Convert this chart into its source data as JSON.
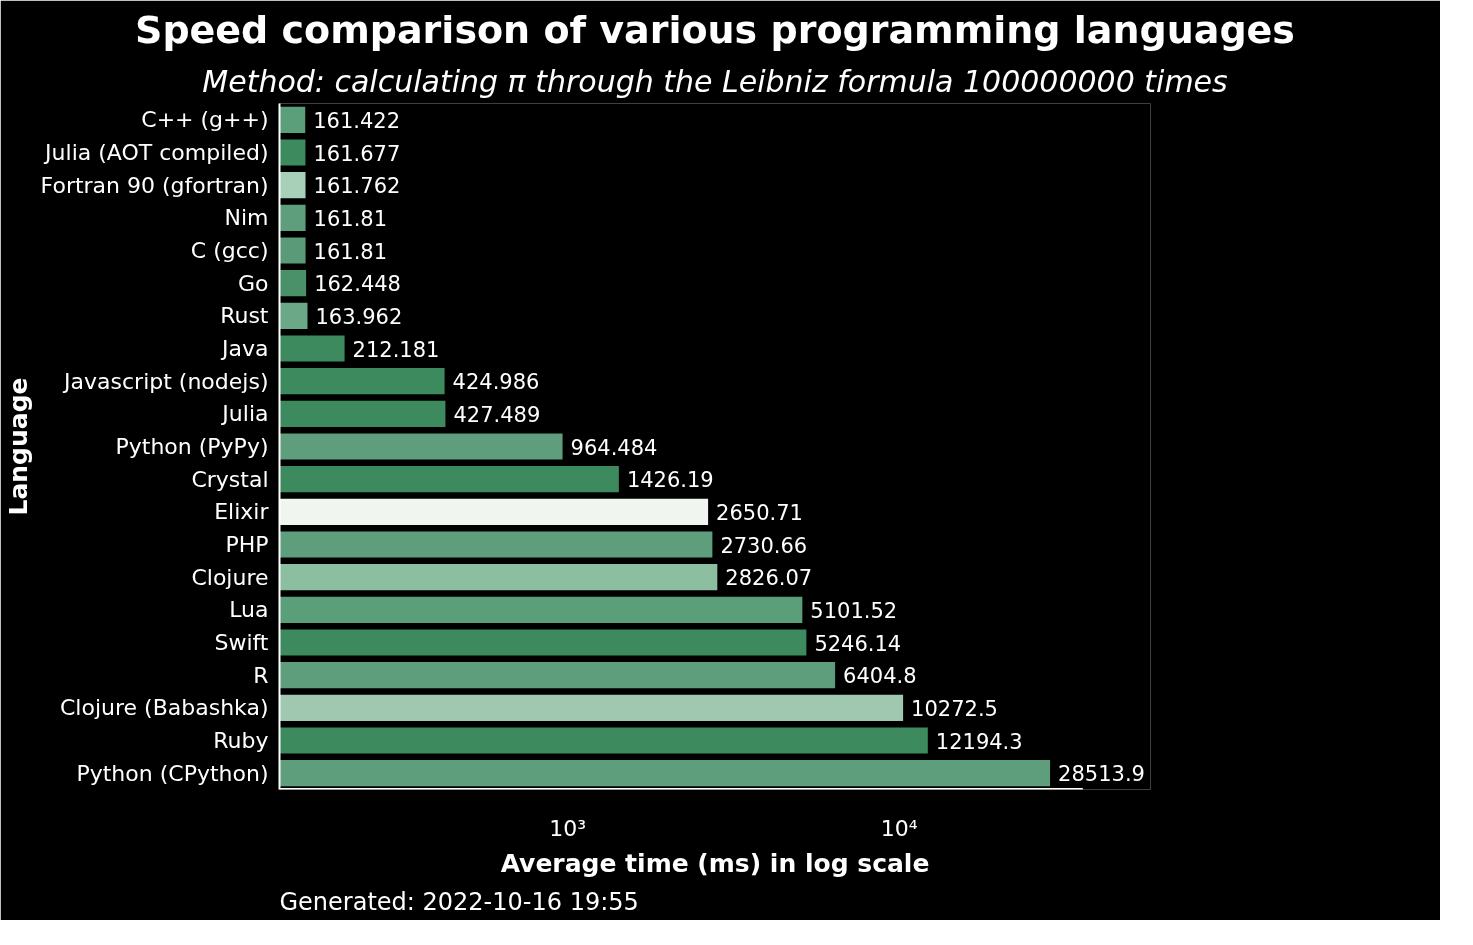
{
  "chart_data": {
    "type": "bar",
    "orientation": "horizontal",
    "title": "Speed comparison of various programming languages",
    "subtitle": "Method: calculating π through the Leibniz formula 100000000 times",
    "xlabel": "Average time (ms) in log scale",
    "ylabel": "Language",
    "categories": [
      "C++ (g++)",
      "Julia (AOT compiled)",
      "Fortran 90 (gfortran)",
      "Nim",
      "C (gcc)",
      "Go",
      "Rust",
      "Java",
      "Javascript (nodejs)",
      "Julia",
      "Python (PyPy)",
      "Crystal",
      "Elixir",
      "PHP",
      "Clojure",
      "Lua",
      "Swift",
      "R",
      "Clojure (Babashka)",
      "Ruby",
      "Python (CPython)"
    ],
    "values": [
      161.422,
      161.677,
      161.762,
      161.81,
      161.81,
      162.448,
      163.962,
      212.181,
      424.986,
      427.489,
      964.484,
      1426.19,
      2650.71,
      2730.66,
      2826.07,
      5101.52,
      5246.14,
      6404.8,
      10272.5,
      12194.3,
      28513.9
    ],
    "colors": [
      "#5a9e7a",
      "#3d8a5e",
      "#a8d0b8",
      "#5e9e7c",
      "#5a9a78",
      "#4a9068",
      "#6aa888",
      "#3d8a5e",
      "#3d8a5e",
      "#3d8a5e",
      "#5e9e7c",
      "#3d8a5e",
      "#f0f5f0",
      "#5e9e7c",
      "#8cbea0",
      "#5a9e7a",
      "#3d8a5e",
      "#5e9e7c",
      "#a0c8b0",
      "#3d8a5e",
      "#5e9e7c"
    ],
    "log": "x",
    "xlim": [
      135,
      35800
    ],
    "xticks": [
      {
        "value": 1000,
        "label": "10³"
      },
      {
        "value": 10000,
        "label": "10⁴"
      }
    ],
    "data_labels": true,
    "grid": false,
    "annotations": [
      "Generated: 2022-10-16 19:55"
    ]
  }
}
